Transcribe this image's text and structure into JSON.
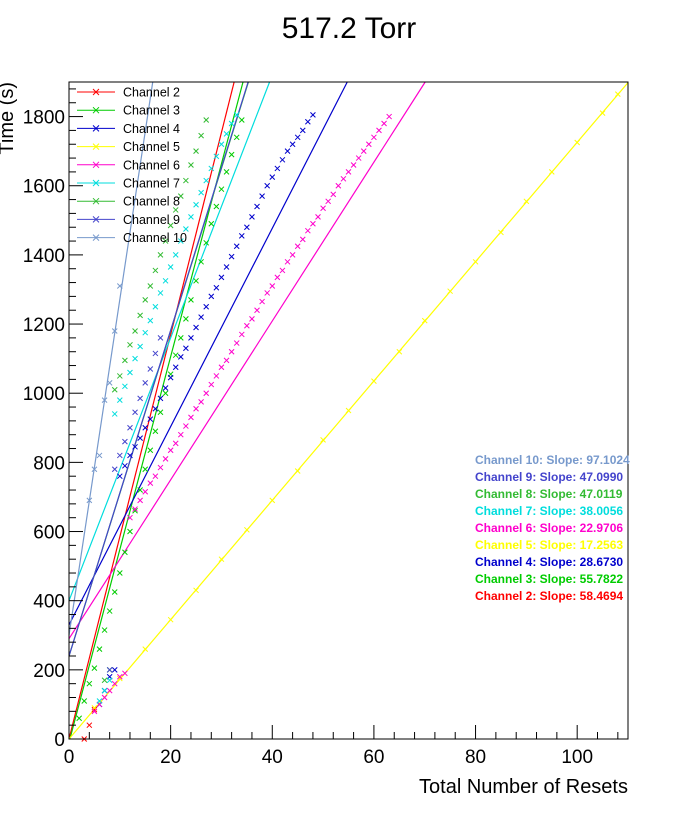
{
  "chart_data": {
    "type": "scatter",
    "title": "517.2 Torr",
    "xlabel": "Total Number of Resets",
    "ylabel": "Time (s)",
    "xlim": [
      0,
      110
    ],
    "ylim": [
      0,
      1900
    ],
    "x_ticks": [
      0,
      20,
      40,
      60,
      80,
      100
    ],
    "y_ticks": [
      0,
      200,
      400,
      600,
      800,
      1000,
      1200,
      1400,
      1600,
      1800
    ],
    "grid": false,
    "legend_position": "top-left",
    "series": [
      {
        "name": "Channel 2",
        "color": "#ff0000",
        "slope": 58.4694,
        "intercept": 0,
        "points": [
          [
            3,
            0
          ],
          [
            4,
            40
          ],
          [
            5,
            85
          ]
        ],
        "slope_label": "Channel 2: Slope: 58.4694"
      },
      {
        "name": "Channel 3",
        "color": "#00cc00",
        "slope": 55.7822,
        "intercept": -10,
        "points": [
          [
            2,
            60
          ],
          [
            3,
            110
          ],
          [
            4,
            160
          ],
          [
            5,
            205
          ],
          [
            6,
            260
          ],
          [
            7,
            315
          ],
          [
            8,
            370
          ],
          [
            9,
            425
          ],
          [
            10,
            480
          ],
          [
            11,
            540
          ],
          [
            12,
            600
          ],
          [
            13,
            660
          ],
          [
            14,
            720
          ],
          [
            15,
            780
          ],
          [
            16,
            835
          ],
          [
            17,
            890
          ],
          [
            18,
            945
          ],
          [
            19,
            1000
          ],
          [
            20,
            1055
          ],
          [
            21,
            1110
          ],
          [
            22,
            1160
          ],
          [
            23,
            1215
          ],
          [
            24,
            1270
          ],
          [
            25,
            1325
          ],
          [
            26,
            1380
          ],
          [
            27,
            1435
          ],
          [
            28,
            1490
          ],
          [
            29,
            1540
          ],
          [
            30,
            1590
          ],
          [
            31,
            1640
          ],
          [
            32,
            1690
          ],
          [
            33,
            1740
          ],
          [
            34,
            1790
          ]
        ],
        "slope_label": "Channel 3: Slope: 55.7822"
      },
      {
        "name": "Channel 4",
        "color": "#0000cc",
        "slope": 28.673,
        "intercept": 330,
        "points": [
          [
            6,
            100
          ],
          [
            7,
            140
          ],
          [
            8,
            180
          ],
          [
            9,
            200
          ],
          [
            10,
            760
          ],
          [
            11,
            790
          ],
          [
            12,
            820
          ],
          [
            13,
            845
          ],
          [
            14,
            870
          ],
          [
            15,
            900
          ],
          [
            16,
            925
          ],
          [
            17,
            955
          ],
          [
            18,
            985
          ],
          [
            19,
            1015
          ],
          [
            20,
            1045
          ],
          [
            21,
            1075
          ],
          [
            22,
            1105
          ],
          [
            23,
            1130
          ],
          [
            24,
            1160
          ],
          [
            25,
            1190
          ],
          [
            26,
            1220
          ],
          [
            27,
            1250
          ],
          [
            28,
            1280
          ],
          [
            29,
            1305
          ],
          [
            30,
            1335
          ],
          [
            31,
            1365
          ],
          [
            32,
            1395
          ],
          [
            33,
            1425
          ],
          [
            34,
            1455
          ],
          [
            35,
            1480
          ],
          [
            36,
            1510
          ],
          [
            37,
            1540
          ],
          [
            38,
            1570
          ],
          [
            39,
            1600
          ],
          [
            40,
            1625
          ],
          [
            41,
            1650
          ],
          [
            42,
            1675
          ],
          [
            43,
            1700
          ],
          [
            44,
            1720
          ],
          [
            45,
            1740
          ],
          [
            46,
            1760
          ],
          [
            47,
            1785
          ],
          [
            48,
            1805
          ]
        ],
        "slope_label": "Channel 4: Slope: 28.6730"
      },
      {
        "name": "Channel 5",
        "color": "#ffff00",
        "slope": 17.2563,
        "intercept": 0,
        "points": [
          [
            5,
            90
          ],
          [
            10,
            175
          ],
          [
            15,
            260
          ],
          [
            20,
            345
          ],
          [
            25,
            430
          ],
          [
            30,
            520
          ],
          [
            35,
            605
          ],
          [
            40,
            690
          ],
          [
            45,
            775
          ],
          [
            50,
            865
          ],
          [
            55,
            950
          ],
          [
            60,
            1035
          ],
          [
            65,
            1120
          ],
          [
            70,
            1210
          ],
          [
            75,
            1295
          ],
          [
            80,
            1380
          ],
          [
            85,
            1465
          ],
          [
            90,
            1555
          ],
          [
            95,
            1640
          ],
          [
            100,
            1725
          ],
          [
            105,
            1810
          ],
          [
            108,
            1865
          ]
        ],
        "slope_label": "Channel 5: Slope: 17.2563"
      },
      {
        "name": "Channel 6",
        "color": "#ff00cc",
        "slope": 22.9706,
        "intercept": 290,
        "points": [
          [
            5,
            80
          ],
          [
            6,
            100
          ],
          [
            7,
            120
          ],
          [
            8,
            140
          ],
          [
            9,
            160
          ],
          [
            10,
            180
          ],
          [
            11,
            190
          ],
          [
            12,
            640
          ],
          [
            13,
            665
          ],
          [
            14,
            690
          ],
          [
            15,
            715
          ],
          [
            16,
            740
          ],
          [
            17,
            760
          ],
          [
            18,
            785
          ],
          [
            19,
            810
          ],
          [
            20,
            835
          ],
          [
            21,
            855
          ],
          [
            22,
            880
          ],
          [
            23,
            905
          ],
          [
            24,
            930
          ],
          [
            25,
            955
          ],
          [
            26,
            975
          ],
          [
            27,
            1000
          ],
          [
            28,
            1025
          ],
          [
            29,
            1050
          ],
          [
            30,
            1075
          ],
          [
            31,
            1095
          ],
          [
            32,
            1120
          ],
          [
            33,
            1145
          ],
          [
            34,
            1170
          ],
          [
            35,
            1195
          ],
          [
            36,
            1215
          ],
          [
            37,
            1240
          ],
          [
            38,
            1265
          ],
          [
            39,
            1290
          ],
          [
            40,
            1310
          ],
          [
            41,
            1335
          ],
          [
            42,
            1355
          ],
          [
            43,
            1380
          ],
          [
            44,
            1400
          ],
          [
            45,
            1425
          ],
          [
            46,
            1445
          ],
          [
            47,
            1470
          ],
          [
            48,
            1490
          ],
          [
            49,
            1510
          ],
          [
            50,
            1535
          ],
          [
            51,
            1555
          ],
          [
            52,
            1575
          ],
          [
            53,
            1600
          ],
          [
            54,
            1620
          ],
          [
            55,
            1640
          ],
          [
            56,
            1660
          ],
          [
            57,
            1680
          ],
          [
            58,
            1700
          ],
          [
            59,
            1720
          ],
          [
            60,
            1740
          ],
          [
            61,
            1760
          ],
          [
            62,
            1780
          ],
          [
            63,
            1800
          ]
        ],
        "slope_label": "Channel 6: Slope: 22.9706"
      },
      {
        "name": "Channel 7",
        "color": "#00dddd",
        "slope": 38.0056,
        "intercept": 400,
        "points": [
          [
            6,
            110
          ],
          [
            7,
            140
          ],
          [
            8,
            170
          ],
          [
            9,
            940
          ],
          [
            10,
            980
          ],
          [
            11,
            1020
          ],
          [
            12,
            1060
          ],
          [
            13,
            1100
          ],
          [
            14,
            1135
          ],
          [
            15,
            1175
          ],
          [
            16,
            1210
          ],
          [
            17,
            1250
          ],
          [
            18,
            1290
          ],
          [
            19,
            1325
          ],
          [
            20,
            1365
          ],
          [
            21,
            1400
          ],
          [
            22,
            1440
          ],
          [
            23,
            1475
          ],
          [
            24,
            1510
          ],
          [
            25,
            1545
          ],
          [
            26,
            1580
          ],
          [
            27,
            1615
          ],
          [
            28,
            1650
          ],
          [
            29,
            1685
          ],
          [
            30,
            1720
          ],
          [
            31,
            1750
          ],
          [
            32,
            1780
          ],
          [
            33,
            1805
          ]
        ],
        "slope_label": "Channel 7: Slope: 38.0056"
      },
      {
        "name": "Channel 8",
        "color": "#33bb33",
        "slope": 47.0119,
        "intercept": 240,
        "points": [
          [
            7,
            170
          ],
          [
            8,
            200
          ],
          [
            9,
            1010
          ],
          [
            10,
            1050
          ],
          [
            11,
            1095
          ],
          [
            12,
            1140
          ],
          [
            13,
            1180
          ],
          [
            14,
            1225
          ],
          [
            15,
            1270
          ],
          [
            16,
            1310
          ],
          [
            17,
            1355
          ],
          [
            18,
            1400
          ],
          [
            19,
            1440
          ],
          [
            20,
            1485
          ],
          [
            21,
            1530
          ],
          [
            22,
            1570
          ],
          [
            23,
            1615
          ],
          [
            24,
            1660
          ],
          [
            25,
            1700
          ],
          [
            26,
            1745
          ],
          [
            27,
            1790
          ]
        ],
        "slope_label": "Channel 8: Slope: 47.0119"
      },
      {
        "name": "Channel 9",
        "color": "#4444cc",
        "slope": 47.099,
        "intercept": 240,
        "points": [
          [
            8,
            200
          ],
          [
            9,
            780
          ],
          [
            10,
            820
          ],
          [
            11,
            860
          ],
          [
            12,
            900
          ],
          [
            13,
            945
          ],
          [
            14,
            985
          ],
          [
            15,
            1030
          ],
          [
            16,
            1070
          ],
          [
            17,
            1115
          ],
          [
            18,
            1160
          ]
        ],
        "slope_label": "Channel 9: Slope: 47.0990"
      },
      {
        "name": "Channel 10",
        "color": "#7799cc",
        "slope": 97.1024,
        "intercept": 300,
        "points": [
          [
            4,
            690
          ],
          [
            5,
            780
          ],
          [
            6,
            820
          ],
          [
            7,
            980
          ],
          [
            8,
            1030
          ],
          [
            9,
            1180
          ],
          [
            10,
            1310
          ]
        ],
        "slope_label": "Channel 10: Slope: 97.1024"
      }
    ]
  }
}
